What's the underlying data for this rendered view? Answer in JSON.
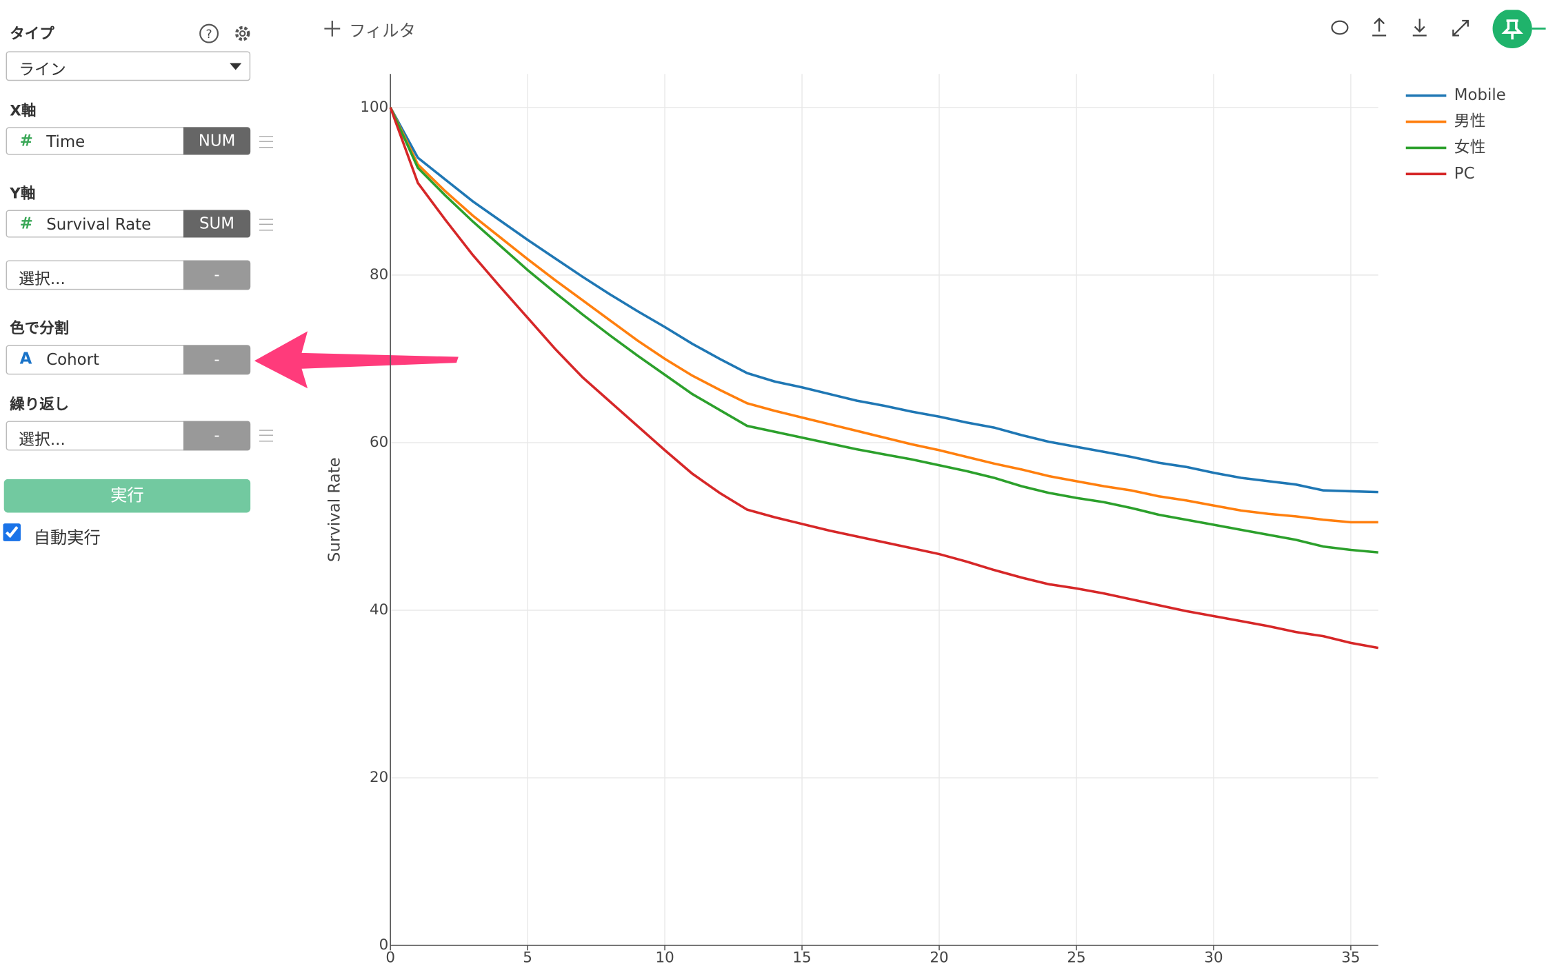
{
  "sidebar": {
    "type_label": "タイプ",
    "type_value": "ライン",
    "x_axis": {
      "label": "X軸",
      "field": "Time",
      "agg": "NUM"
    },
    "y_axis": {
      "label": "Y軸",
      "field": "Survival Rate",
      "agg": "SUM"
    },
    "y_extra": {
      "field": "選択...",
      "agg": "-"
    },
    "color_split": {
      "label": "色で分割",
      "field": "Cohort",
      "agg": "-"
    },
    "repeat": {
      "label": "繰り返し",
      "field": "選択...",
      "agg": "-"
    },
    "run": "実行",
    "auto_run": "自動実行"
  },
  "toolbar": {
    "filter": "フィルタ"
  },
  "chart_data": {
    "type": "line",
    "y_label": "Survival Rate",
    "x": [
      0,
      1,
      2,
      3,
      4,
      5,
      6,
      7,
      8,
      9,
      10,
      11,
      12,
      13,
      14,
      15,
      16,
      17,
      18,
      19,
      20,
      21,
      22,
      23,
      24,
      25,
      26,
      27,
      28,
      29,
      30,
      31,
      32,
      33,
      34,
      35,
      36
    ],
    "xlim": [
      0,
      36
    ],
    "xticks": [
      0,
      5,
      10,
      15,
      20,
      25,
      30,
      35
    ],
    "ylim": [
      0,
      104
    ],
    "yticks": [
      0,
      20,
      40,
      60,
      80,
      100
    ],
    "grid": true,
    "legend": "right",
    "series": [
      {
        "name": "Mobile",
        "color": "#1f77b4",
        "values": [
          100,
          94,
          91.4,
          88.8,
          86.5,
          84.2,
          82,
          79.8,
          77.7,
          75.7,
          73.8,
          71.8,
          70,
          68.3,
          67.3,
          66.6,
          65.8,
          65,
          64.4,
          63.7,
          63.1,
          62.4,
          61.8,
          60.9,
          60.1,
          59.5,
          58.9,
          58.3,
          57.6,
          57.1,
          56.4,
          55.8,
          55.4,
          55,
          54.3,
          54.2,
          54.1
        ]
      },
      {
        "name": "男性",
        "color": "#ff7f0e",
        "values": [
          100,
          93.2,
          90,
          87.1,
          84.5,
          81.9,
          79.4,
          77,
          74.6,
          72.2,
          70,
          68,
          66.3,
          64.7,
          63.8,
          63,
          62.2,
          61.4,
          60.6,
          59.8,
          59.1,
          58.3,
          57.5,
          56.8,
          56,
          55.4,
          54.8,
          54.3,
          53.6,
          53.1,
          52.5,
          51.9,
          51.5,
          51.2,
          50.8,
          50.5,
          50.5
        ]
      },
      {
        "name": "女性",
        "color": "#2ca02c",
        "values": [
          100,
          92.8,
          89.5,
          86.4,
          83.5,
          80.6,
          77.9,
          75.3,
          72.8,
          70.4,
          68.1,
          65.8,
          63.9,
          62,
          61.3,
          60.6,
          59.9,
          59.2,
          58.6,
          58,
          57.3,
          56.6,
          55.8,
          54.8,
          54,
          53.4,
          52.9,
          52.2,
          51.4,
          50.8,
          50.2,
          49.6,
          49,
          48.4,
          47.6,
          47.2,
          46.9
        ]
      },
      {
        "name": "PC",
        "color": "#d62728",
        "values": [
          100,
          91,
          86.6,
          82.4,
          78.6,
          74.9,
          71.2,
          67.8,
          64.9,
          62,
          59.1,
          56.3,
          54,
          52,
          51.1,
          50.3,
          49.5,
          48.8,
          48.1,
          47.4,
          46.7,
          45.8,
          44.8,
          43.9,
          43.1,
          42.6,
          42,
          41.3,
          40.6,
          39.9,
          39.3,
          38.7,
          38.1,
          37.4,
          36.9,
          36.1,
          35.5
        ]
      }
    ]
  }
}
